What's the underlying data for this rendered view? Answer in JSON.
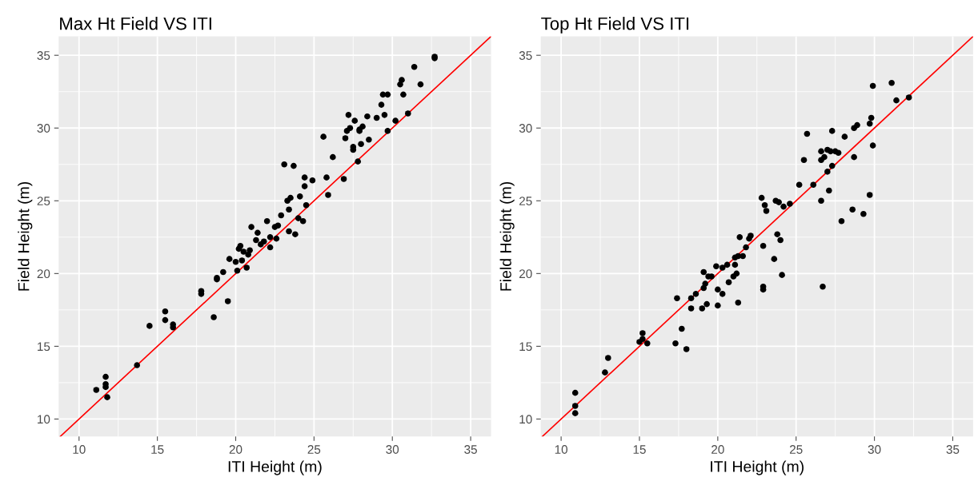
{
  "chart_data": [
    {
      "type": "scatter",
      "title": "Max Ht Field VS ITI",
      "xlabel": "ITI Height (m)",
      "ylabel": "Field Height (m)",
      "xlim": [
        8.7,
        36.3
      ],
      "ylim": [
        8.8,
        36.3
      ],
      "xticks": [
        10,
        15,
        20,
        25,
        30,
        35
      ],
      "yticks": [
        10,
        15,
        20,
        25,
        30,
        35
      ],
      "grid": true,
      "legend": false,
      "series": [
        {
          "marker": "circle",
          "color": "#000000",
          "x": [
            11.1,
            11.7,
            11.7,
            11.7,
            11.8,
            13.7,
            14.5,
            15.5,
            15.5,
            16.0,
            16.0,
            17.8,
            17.8,
            18.6,
            18.8,
            18.8,
            19.2,
            19.5,
            19.6,
            20.0,
            20.1,
            20.2,
            20.3,
            20.4,
            20.5,
            20.7,
            20.8,
            20.9,
            21.0,
            21.3,
            21.4,
            21.6,
            21.8,
            22.0,
            22.2,
            22.2,
            22.5,
            22.6,
            22.7,
            22.9,
            23.1,
            23.3,
            23.4,
            23.4,
            23.5,
            23.7,
            23.8,
            24.0,
            24.1,
            24.3,
            24.4,
            24.4,
            24.5,
            24.9,
            25.6,
            25.8,
            25.9,
            26.2,
            26.9,
            27.0,
            27.1,
            27.2,
            27.3,
            27.5,
            27.5,
            27.6,
            27.8,
            27.9,
            27.9,
            28.0,
            28.1,
            28.4,
            28.5,
            29.0,
            29.3,
            29.4,
            29.5,
            29.7,
            29.7,
            30.2,
            30.5,
            30.6,
            30.7,
            31.0,
            31.4,
            31.8,
            32.7,
            32.7
          ],
          "values": [
            12.0,
            12.9,
            12.4,
            12.2,
            11.5,
            13.7,
            16.4,
            17.4,
            16.8,
            16.5,
            16.3,
            18.8,
            18.6,
            17.0,
            19.6,
            19.7,
            20.1,
            18.1,
            21.0,
            20.8,
            20.2,
            21.7,
            21.9,
            20.9,
            21.5,
            20.4,
            21.3,
            21.6,
            23.2,
            22.3,
            22.8,
            22.0,
            22.2,
            23.6,
            22.5,
            21.8,
            23.2,
            22.4,
            23.3,
            24.0,
            27.5,
            25.0,
            24.4,
            22.9,
            25.2,
            27.4,
            22.7,
            23.8,
            25.3,
            23.6,
            26.0,
            26.6,
            24.7,
            26.4,
            29.4,
            26.6,
            25.4,
            28.0,
            26.5,
            29.3,
            29.8,
            30.9,
            30.0,
            28.7,
            28.5,
            30.5,
            27.7,
            29.9,
            29.8,
            28.9,
            30.1,
            30.8,
            29.2,
            30.7,
            31.6,
            32.3,
            30.9,
            32.3,
            29.8,
            30.5,
            33.0,
            33.3,
            32.3,
            31.0,
            34.2,
            33.0,
            34.8,
            34.9
          ]
        },
        {
          "type": "line",
          "marker": "none",
          "color": "#ff0000",
          "x": [
            8.8,
            36.3
          ],
          "values": [
            8.8,
            36.3
          ]
        }
      ]
    },
    {
      "type": "scatter",
      "title": "Top Ht Field VS ITI",
      "xlabel": "ITI Height (m)",
      "ylabel": "Field Height (m)",
      "xlim": [
        8.7,
        36.3
      ],
      "ylim": [
        8.8,
        36.3
      ],
      "xticks": [
        10,
        15,
        20,
        25,
        30,
        35
      ],
      "yticks": [
        10,
        15,
        20,
        25,
        30,
        35
      ],
      "grid": true,
      "legend": false,
      "series": [
        {
          "marker": "circle",
          "color": "#000000",
          "x": [
            10.9,
            10.9,
            10.9,
            12.8,
            13.0,
            15.0,
            15.2,
            15.2,
            15.5,
            17.3,
            17.4,
            17.7,
            18.0,
            18.3,
            18.3,
            18.6,
            19.0,
            19.1,
            19.1,
            19.2,
            19.3,
            19.4,
            19.6,
            19.9,
            20.0,
            20.0,
            20.3,
            20.3,
            20.6,
            20.7,
            21.0,
            21.1,
            21.1,
            21.2,
            21.3,
            21.3,
            21.4,
            21.6,
            21.8,
            22.0,
            22.1,
            22.8,
            22.9,
            22.9,
            22.9,
            23.0,
            23.1,
            23.6,
            23.7,
            23.8,
            23.9,
            24.0,
            24.1,
            24.2,
            24.6,
            25.2,
            25.5,
            25.7,
            26.1,
            26.6,
            26.6,
            26.6,
            26.7,
            26.8,
            27.0,
            27.0,
            27.1,
            27.2,
            27.3,
            27.3,
            27.5,
            27.7,
            27.9,
            28.1,
            28.6,
            28.7,
            28.7,
            28.9,
            29.3,
            29.7,
            29.7,
            29.8,
            29.9,
            29.9,
            31.1,
            31.4,
            32.2
          ],
          "values": [
            10.4,
            10.9,
            11.8,
            13.2,
            14.2,
            15.3,
            15.5,
            15.9,
            15.2,
            15.2,
            18.3,
            16.2,
            14.8,
            17.6,
            18.3,
            18.6,
            17.6,
            20.1,
            19.0,
            19.3,
            17.9,
            19.8,
            19.8,
            20.5,
            17.8,
            18.9,
            20.4,
            18.6,
            20.6,
            19.4,
            19.8,
            21.1,
            20.6,
            20.0,
            21.2,
            18.0,
            22.5,
            21.2,
            21.8,
            22.4,
            22.6,
            25.2,
            19.1,
            18.9,
            21.9,
            24.7,
            24.3,
            21.0,
            25.0,
            22.7,
            24.9,
            22.3,
            19.9,
            24.6,
            24.8,
            26.1,
            27.8,
            29.6,
            26.1,
            25.0,
            27.8,
            28.4,
            19.1,
            28.0,
            28.5,
            27.0,
            25.7,
            28.4,
            29.8,
            27.4,
            28.4,
            28.3,
            23.6,
            29.4,
            24.4,
            28.0,
            30.0,
            30.2,
            24.1,
            30.3,
            25.4,
            30.7,
            28.8,
            32.9,
            33.1,
            31.9,
            32.1
          ]
        },
        {
          "type": "line",
          "marker": "none",
          "color": "#ff0000",
          "x": [
            8.8,
            36.3
          ],
          "values": [
            8.8,
            36.3
          ]
        }
      ]
    }
  ]
}
